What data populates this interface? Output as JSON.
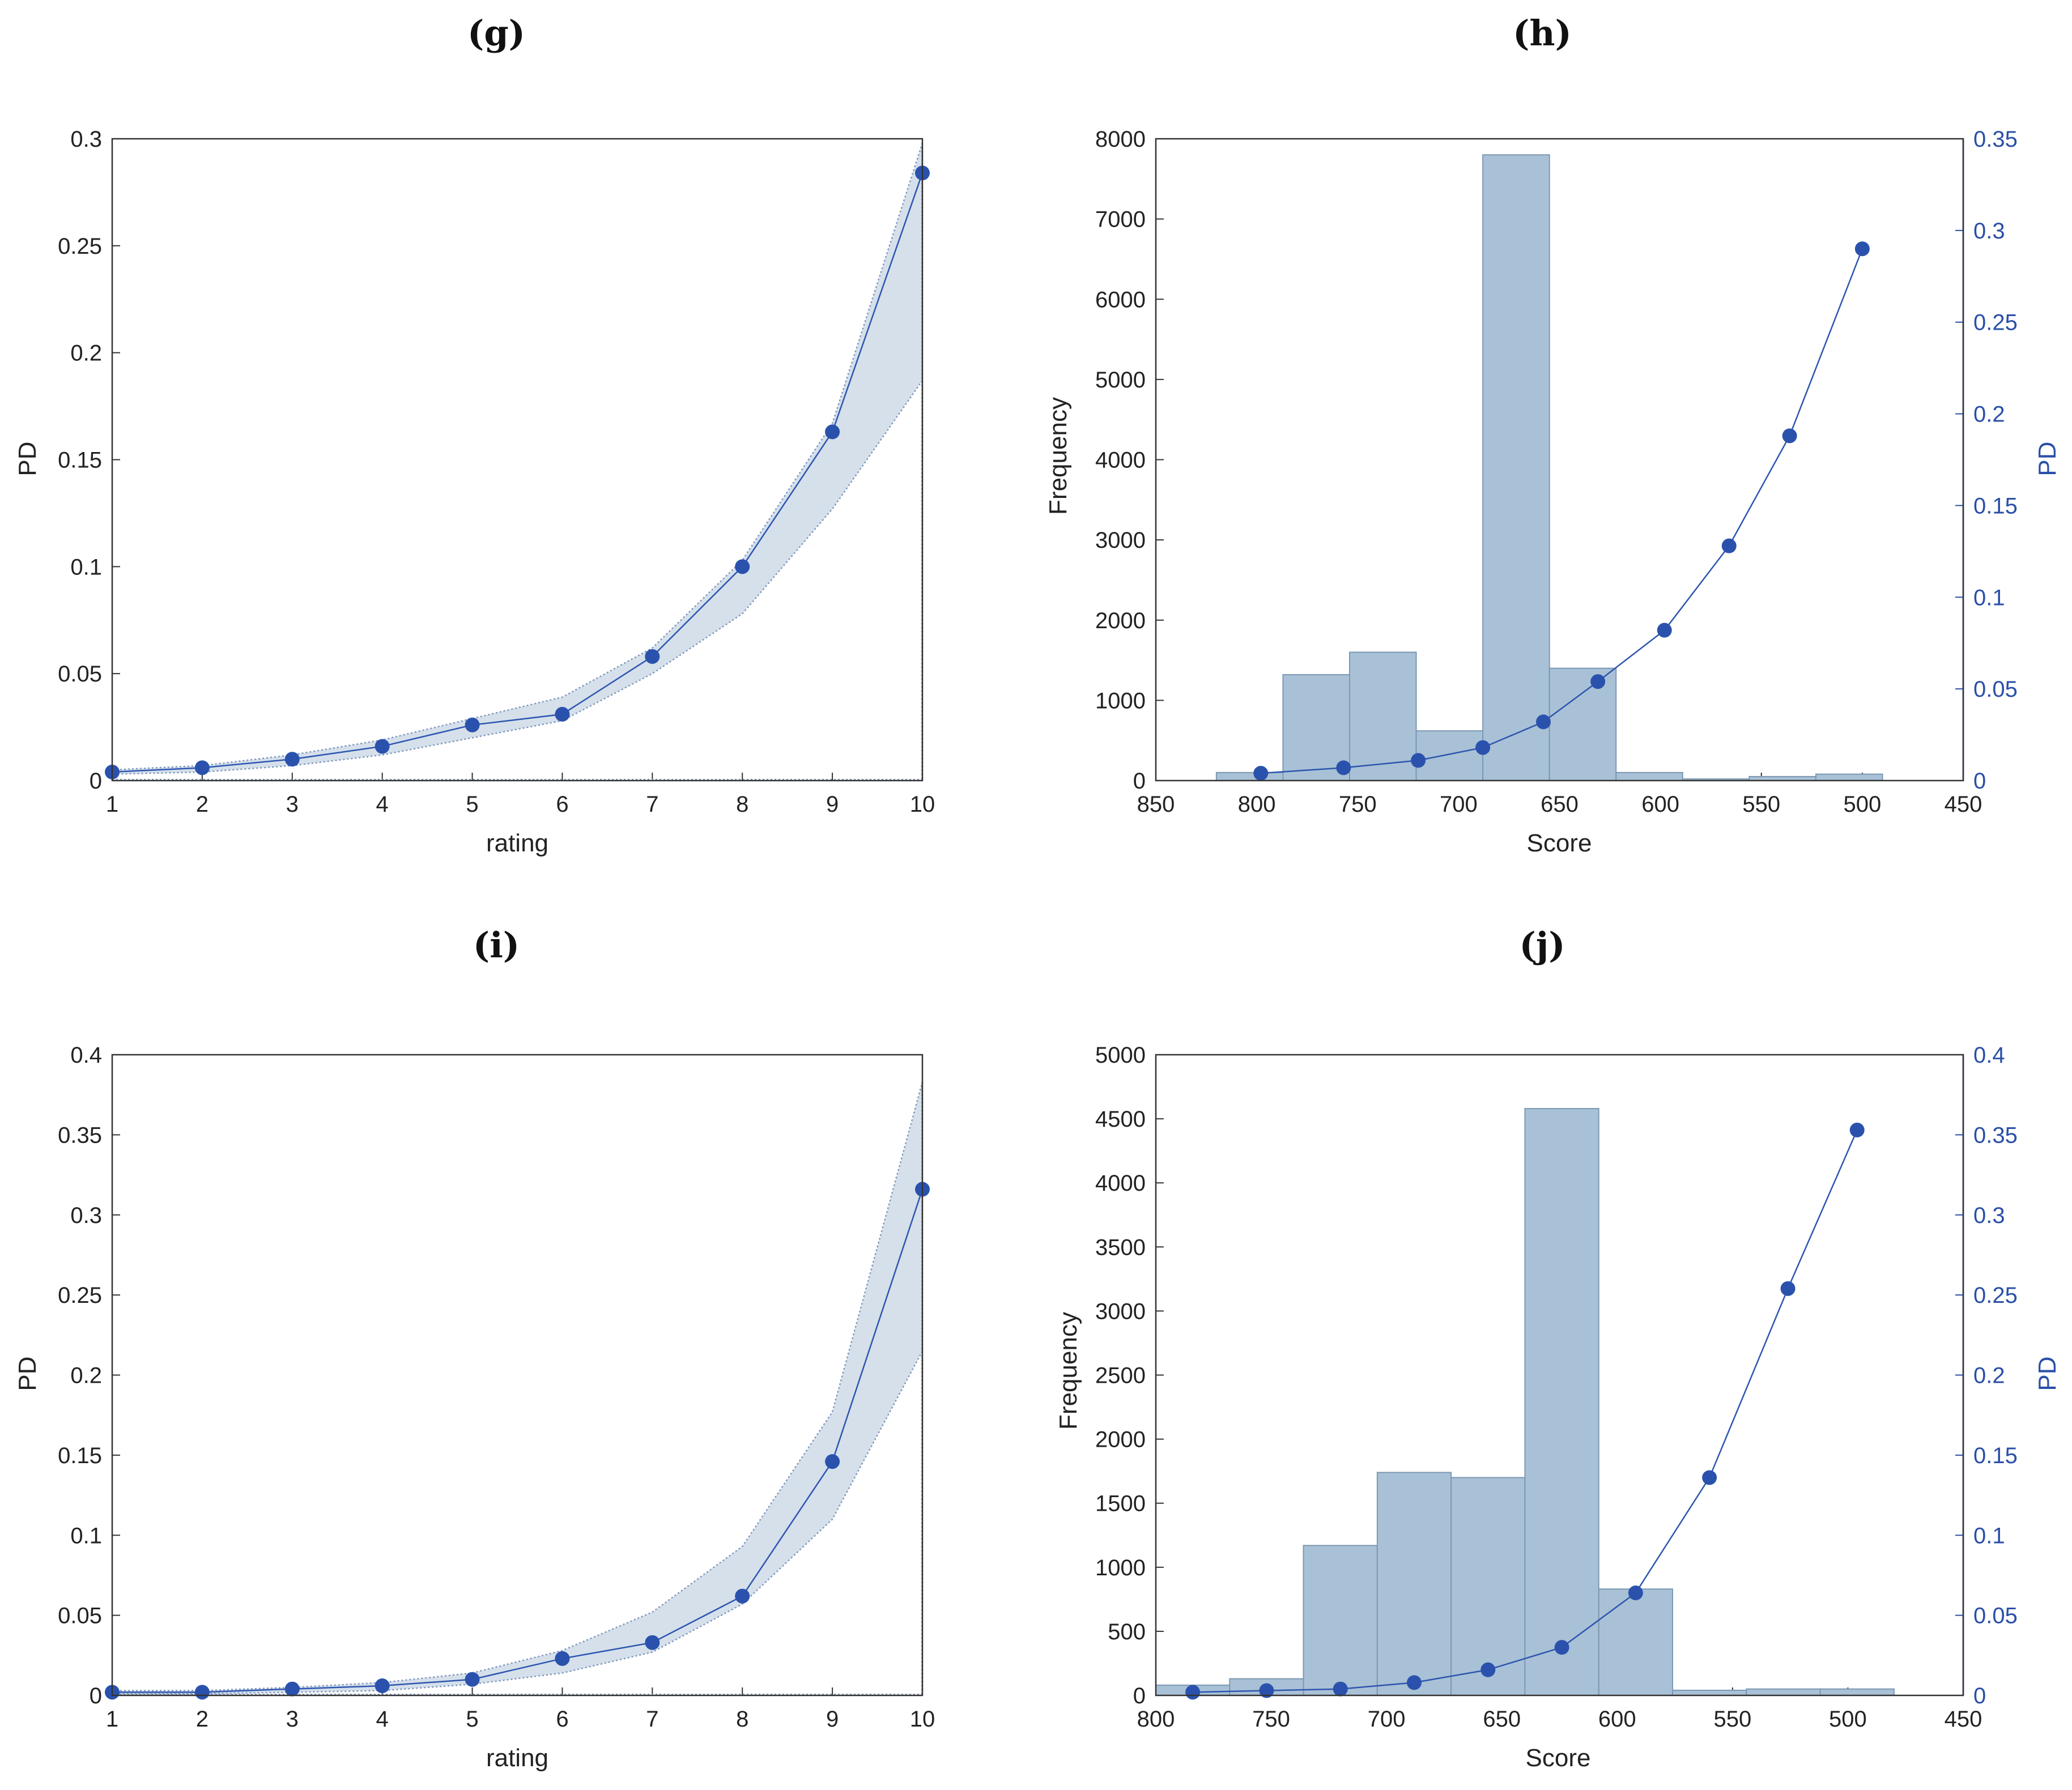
{
  "colors": {
    "line": "#2d55b0",
    "marker": "#2a52ad",
    "band_fill": "#d5e0eb",
    "band_edge": "#7f97bd",
    "bar_fill": "#a9c1d6",
    "bar_edge": "#7c98b3",
    "axis": "#333333",
    "right_axis": "#2a4fa8"
  },
  "chart_data": [
    {
      "id": "g",
      "type": "line",
      "panel_label": "(g)",
      "xlabel": "rating",
      "ylabel": "PD",
      "xlim": [
        1,
        10
      ],
      "ylim": [
        0,
        0.3
      ],
      "xticks": [
        1,
        2,
        3,
        4,
        5,
        6,
        7,
        8,
        9,
        10
      ],
      "yticks": [
        0,
        0.05,
        0.1,
        0.15,
        0.2,
        0.25,
        0.3
      ],
      "ytick_labels": [
        "0",
        "0.05",
        "0.1",
        "0.15",
        "0.2",
        "0.25",
        "0.3"
      ],
      "x": [
        1,
        2,
        3,
        4,
        5,
        6,
        7,
        8,
        9,
        10
      ],
      "pd": [
        0.004,
        0.006,
        0.01,
        0.016,
        0.026,
        0.031,
        0.058,
        0.1,
        0.163,
        0.284
      ],
      "band_upper": [
        0.005,
        0.007,
        0.012,
        0.019,
        0.029,
        0.039,
        0.062,
        0.103,
        0.167,
        0.298
      ],
      "band_lower": [
        0.003,
        0.004,
        0.007,
        0.012,
        0.02,
        0.028,
        0.05,
        0.078,
        0.127,
        0.187
      ]
    },
    {
      "id": "h",
      "type": "bar",
      "panel_label": "(h)",
      "xlabel": "Score",
      "ylabel": "Frequency",
      "ylabel_right": "PD",
      "xlim": [
        850,
        450
      ],
      "ylim": [
        0,
        8000
      ],
      "ylim_right": [
        0,
        0.35
      ],
      "xticks": [
        850,
        800,
        750,
        700,
        650,
        600,
        550,
        500,
        450
      ],
      "yticks": [
        0,
        1000,
        2000,
        3000,
        4000,
        5000,
        6000,
        7000,
        8000
      ],
      "yticks_right": [
        0,
        0.05,
        0.1,
        0.15,
        0.2,
        0.25,
        0.3,
        0.35
      ],
      "ytick_labels_right": [
        "0",
        "0.05",
        "0.1",
        "0.15",
        "0.2",
        "0.25",
        "0.3",
        "0.35"
      ],
      "bars": [
        {
          "x0": 820,
          "x1": 787,
          "value": 100
        },
        {
          "x0": 787,
          "x1": 754,
          "value": 1320
        },
        {
          "x0": 754,
          "x1": 721,
          "value": 1600
        },
        {
          "x0": 721,
          "x1": 688,
          "value": 620
        },
        {
          "x0": 688,
          "x1": 655,
          "value": 7800
        },
        {
          "x0": 655,
          "x1": 622,
          "value": 1400
        },
        {
          "x0": 622,
          "x1": 589,
          "value": 100
        },
        {
          "x0": 589,
          "x1": 556,
          "value": 20
        },
        {
          "x0": 556,
          "x1": 523,
          "value": 50
        },
        {
          "x0": 523,
          "x1": 490,
          "value": 80
        }
      ],
      "line_x": [
        798,
        757,
        720,
        688,
        658,
        631,
        598,
        566,
        536,
        500
      ],
      "line_pd": [
        0.004,
        0.007,
        0.011,
        0.018,
        0.032,
        0.054,
        0.082,
        0.128,
        0.188,
        0.29
      ]
    },
    {
      "id": "i",
      "type": "line",
      "panel_label": "(i)",
      "xlabel": "rating",
      "ylabel": "PD",
      "xlim": [
        1,
        10
      ],
      "ylim": [
        0,
        0.4
      ],
      "xticks": [
        1,
        2,
        3,
        4,
        5,
        6,
        7,
        8,
        9,
        10
      ],
      "yticks": [
        0,
        0.05,
        0.1,
        0.15,
        0.2,
        0.25,
        0.3,
        0.35,
        0.4
      ],
      "ytick_labels": [
        "0",
        "0.05",
        "0.1",
        "0.15",
        "0.2",
        "0.25",
        "0.3",
        "0.35",
        "0.4"
      ],
      "x": [
        1,
        2,
        3,
        4,
        5,
        6,
        7,
        8,
        9,
        10
      ],
      "pd": [
        0.002,
        0.002,
        0.004,
        0.006,
        0.01,
        0.023,
        0.033,
        0.062,
        0.146,
        0.316
      ],
      "band_upper": [
        0.003,
        0.003,
        0.005,
        0.008,
        0.014,
        0.028,
        0.052,
        0.093,
        0.177,
        0.383
      ],
      "band_lower": [
        0.001,
        0.001,
        0.002,
        0.003,
        0.007,
        0.014,
        0.027,
        0.057,
        0.11,
        0.215
      ]
    },
    {
      "id": "j",
      "type": "bar",
      "panel_label": "(j)",
      "xlabel": "Score",
      "ylabel": "Frequency",
      "ylabel_right": "PD",
      "xlim": [
        800,
        450
      ],
      "ylim": [
        0,
        5000
      ],
      "ylim_right": [
        0,
        0.4
      ],
      "xticks": [
        800,
        750,
        700,
        650,
        600,
        550,
        500,
        450
      ],
      "yticks": [
        0,
        500,
        1000,
        1500,
        2000,
        2500,
        3000,
        3500,
        4000,
        4500,
        5000
      ],
      "yticks_right": [
        0,
        0.05,
        0.1,
        0.15,
        0.2,
        0.25,
        0.3,
        0.35,
        0.4
      ],
      "ytick_labels_right": [
        "0",
        "0.05",
        "0.1",
        "0.15",
        "0.2",
        "0.25",
        "0.3",
        "0.35",
        "0.4"
      ],
      "bars": [
        {
          "x0": 800,
          "x1": 768,
          "value": 80
        },
        {
          "x0": 768,
          "x1": 736,
          "value": 130
        },
        {
          "x0": 736,
          "x1": 704,
          "value": 1170
        },
        {
          "x0": 704,
          "x1": 672,
          "value": 1740
        },
        {
          "x0": 672,
          "x1": 640,
          "value": 1700
        },
        {
          "x0": 640,
          "x1": 608,
          "value": 4580
        },
        {
          "x0": 608,
          "x1": 576,
          "value": 830
        },
        {
          "x0": 576,
          "x1": 544,
          "value": 40
        },
        {
          "x0": 544,
          "x1": 512,
          "value": 50
        },
        {
          "x0": 512,
          "x1": 480,
          "value": 50
        }
      ],
      "line_x": [
        784,
        752,
        720,
        688,
        656,
        624,
        592,
        560,
        526,
        496
      ],
      "line_pd": [
        0.002,
        0.003,
        0.004,
        0.008,
        0.016,
        0.03,
        0.064,
        0.136,
        0.254,
        0.353
      ]
    }
  ]
}
